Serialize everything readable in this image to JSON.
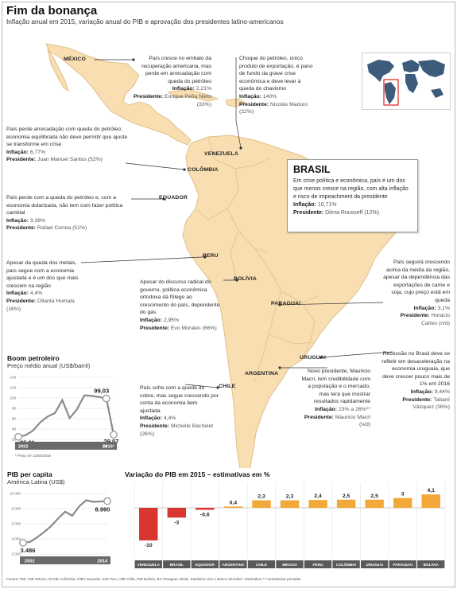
{
  "header": {
    "title": "Fim da bonança",
    "subtitle": "Inflação anual em 2015, variação anual do PIB e aprovação dos presidentes latino-americanos"
  },
  "labels": {
    "inflacao": "Inflação:",
    "presidente": "Presidente:"
  },
  "countries": {
    "mexico": {
      "name": "MÉXICO",
      "text": "País cresce no embalo da recuperação americana, mas perde em arrecadação com queda do petróleo",
      "inflacao": "2,21%",
      "presidente": "Enrique Peña Nieto (33%)"
    },
    "venezuela": {
      "name": "VENEZUELA",
      "text": "Choque do petróleo, único produto de exportação, é pano de fundo da grave crise econômica e deve levar à queda do chavismo",
      "inflacao": "140%",
      "presidente": "Nicolás Maduro (22%)"
    },
    "colombia": {
      "name": "COLÔMBIA",
      "text": "País perde arrecadação com queda do petróleo; economia equilibrada não deve permitir que ajuste se transforme em crise",
      "inflacao": "6,77%",
      "presidente": "Juan Manuel Santos (52%)"
    },
    "equador": {
      "name": "EQUADOR",
      "text": "País perde com a queda do petróleo e, com a economia dolarizada, não tem com fazer política cambial",
      "inflacao": "3,38%",
      "presidente": "Rafael Correa (51%)"
    },
    "brasil": {
      "name": "BRASIL",
      "text": "Em crise política e econômica, país é um dos que menos cresce na região, com alta inflação e risco de impeachment da presidente",
      "inflacao": "10,71%",
      "presidente": "Dilma Rousseff (12%)"
    },
    "peru": {
      "name": "PERU",
      "text": "Apesar da queda dos metais, país segue com a economia ajustada e é um dos que mais crescem na região",
      "inflacao": "4,4%",
      "presidente": "Ollanta Humala (16%)"
    },
    "bolivia": {
      "name": "BOLÍVIA",
      "text": "Apesar do discurso radical do governo, política econômica ortodoxa dá fôlego ao crescimento do país, dependente do gás",
      "inflacao": "2,95%",
      "presidente": "Evo Morales (66%)"
    },
    "paraguai": {
      "name": "PARAGUAI",
      "text": "País seguirá crescendo acima da média da região, apesar da dependência das exportações de carne e soja, cujo preço está em queda",
      "inflacao": "3,1%",
      "presidente": "Horacio Cartes (n/d)"
    },
    "chile": {
      "name": "CHILE",
      "text": "País sofre com a queda do cobre, mas segue crescendo por conta da economia bem ajustada",
      "inflacao": "4,4%",
      "presidente": "Michelle Bachelet (26%)"
    },
    "uruguai": {
      "name": "URUGUAI",
      "text": "Recessão no Brasil deve se refletir em desaceleração na economia uruguaia, que deve crescer pouco mais de 1% em 2016",
      "inflacao": "9,44%",
      "presidente": "Tabaré Vázquez (36%)"
    },
    "argentina": {
      "name": "ARGENTINA",
      "text": "Novo presidente, Mauricio Macri, tem credibilidade com a população e o mercado, mas terá que mostrar resultados rapidamente",
      "inflacao": "23% a 26%**",
      "presidente": "Mauricio Macri (n/d)"
    }
  },
  "oil_panel": {
    "title": "Boom petroleiro",
    "subtitle": "Preço médio anual (US$/barril)",
    "footnote": "* Preço em 13/01/2016"
  },
  "pib_panel": {
    "title": "PIB per capita",
    "subtitle": "América Latina (US$)"
  },
  "gdp_panel": {
    "title": "Variação do PIB em 2015 – estimativas em %"
  },
  "source": "Fontes: FMI, INE México, DANE Colômbia, INEC Equador, INE Peru, INE Chile, INE Bolívia, BC Paraguai, IBGE, Statistica.com e Banco Mundial * Estimativa ** consultorias privadas",
  "colors": {
    "map_land": "#f8deb0",
    "map_land_edge": "#dfc08a",
    "bar_negative": "#d8362f",
    "bar_positive": "#f2a93a",
    "line": "#8a8a8a",
    "circle": "#a9a9a9",
    "bar_label_bg": "#5a5a5a"
  },
  "chart_data": [
    {
      "type": "line",
      "title": "Boom petroleiro",
      "subtitle": "Preço médio anual (US$/barril)",
      "x": [
        "2002",
        "2003",
        "2004",
        "2005",
        "2006",
        "2007",
        "2008",
        "2009",
        "2010",
        "2011",
        "2012",
        "2013",
        "14",
        "2016*"
      ],
      "series": [
        {
          "values": [
            25.01,
            28,
            37,
            53,
            64,
            71,
            96,
            61,
            78,
            105,
            104,
            102,
            99.03,
            29.07
          ]
        }
      ],
      "x_labels": [
        "2002",
        "14",
        "2016*"
      ],
      "y_ticks": [
        20,
        40,
        60,
        80,
        100,
        120,
        140
      ],
      "ylim": [
        20,
        140
      ],
      "data_labels": [
        "25,01",
        "99,03",
        "29,07"
      ],
      "grid": true
    },
    {
      "type": "line",
      "title": "PIB per capita",
      "subtitle": "América Latina (US$)",
      "x": [
        "2002",
        "2003",
        "2004",
        "2005",
        "2006",
        "2007",
        "2008",
        "2009",
        "2010",
        "2011",
        "2012",
        "2013",
        "2014"
      ],
      "series": [
        {
          "values": [
            3486,
            3600,
            4200,
            4900,
            5700,
            6700,
            7600,
            7050,
            8300,
            9100,
            8900,
            8950,
            8990
          ]
        }
      ],
      "x_labels": [
        "2002",
        "2014"
      ],
      "y_ticks": [
        2000,
        4000,
        6000,
        8000,
        10000
      ],
      "y_tick_labels": [
        "2.000",
        "4.000",
        "6.000",
        "8.000",
        "10.000"
      ],
      "ylim": [
        2000,
        10000
      ],
      "data_labels": [
        "3.486",
        "8.990"
      ],
      "grid": true
    },
    {
      "type": "bar",
      "title": "Variação do PIB em 2015 – estimativas em %",
      "categories": [
        "VENEZUELA",
        "BRASIL",
        "EQUADOR",
        "ARGENTINA",
        "CHILE",
        "MÉXICO",
        "PERU",
        "COLÔMBIA",
        "URUGUAI",
        "PARAGUAI",
        "BOLÍVIA"
      ],
      "values": [
        -10,
        -3,
        -0.6,
        0.4,
        2.3,
        2.3,
        2.4,
        2.5,
        2.5,
        3,
        4.1
      ],
      "value_labels": [
        "-10",
        "-3",
        "-0,6",
        "0,4",
        "2,3",
        "2,3",
        "2,4",
        "2,5",
        "2,5",
        "3",
        "4,1"
      ],
      "grid": true
    }
  ]
}
